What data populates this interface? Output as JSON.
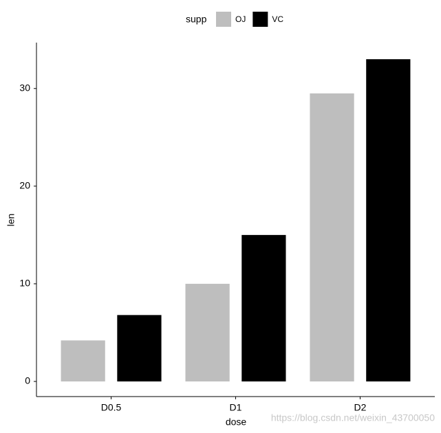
{
  "chart_data": {
    "type": "bar",
    "x_label": "dose",
    "y_label": "len",
    "legend_title": "supp",
    "categories": [
      "D0.5",
      "D1",
      "D2"
    ],
    "series": [
      {
        "name": "OJ",
        "color": "#bebebe",
        "values": [
          4.2,
          10.0,
          29.5
        ]
      },
      {
        "name": "VC",
        "color": "#000000",
        "values": [
          6.8,
          15.0,
          33.0
        ]
      }
    ],
    "ylim": [
      -1.55,
      34.7
    ],
    "yticks": [
      0,
      10,
      20,
      30
    ],
    "grid": false,
    "legend_position": "top",
    "watermark": "https://blog.csdn.net/weixin_43700050"
  }
}
